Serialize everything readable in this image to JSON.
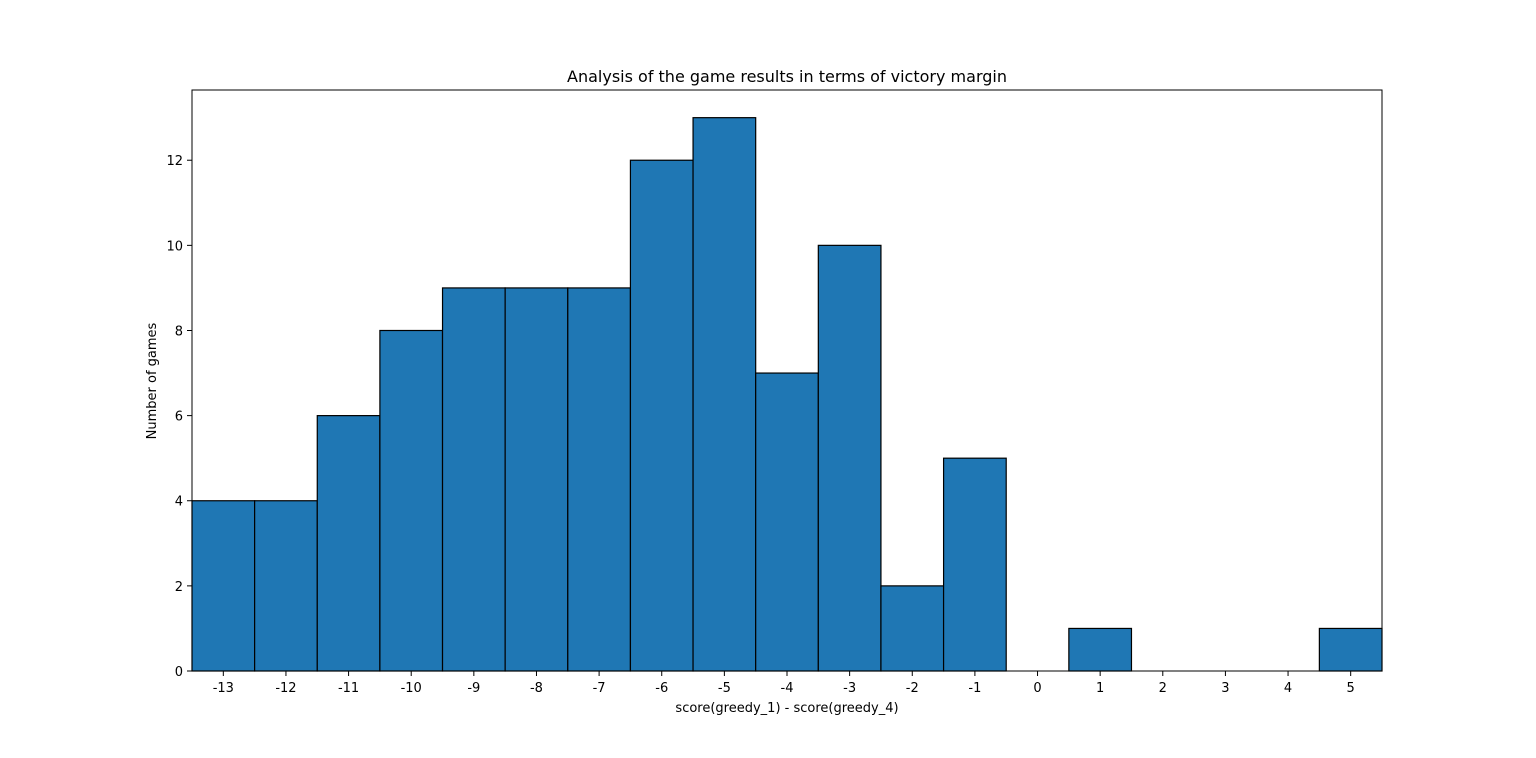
{
  "chart_data": {
    "type": "bar",
    "title": "Analysis of the game results in terms of victory margin",
    "xlabel": "score(greedy_1) - score(greedy_4)",
    "ylabel": "Number of games",
    "categories": [
      "-13",
      "-12",
      "-11",
      "-10",
      "-9",
      "-8",
      "-7",
      "-6",
      "-5",
      "-4",
      "-3",
      "-2",
      "-1",
      "0",
      "1",
      "2",
      "3",
      "4",
      "5"
    ],
    "x": [
      -13,
      -12,
      -11,
      -10,
      -9,
      -8,
      -7,
      -6,
      -5,
      -4,
      -3,
      -2,
      -1,
      0,
      1,
      2,
      3,
      4,
      5
    ],
    "values": [
      4,
      4,
      6,
      8,
      9,
      9,
      9,
      12,
      13,
      7,
      10,
      2,
      5,
      0,
      1,
      0,
      0,
      0,
      1
    ],
    "xlim": [
      -13.5,
      5.5
    ],
    "ylim": [
      0,
      13.65
    ],
    "yticks": [
      0,
      2,
      4,
      6,
      8,
      10,
      12
    ],
    "grid": false,
    "colors": {
      "bar_fill": "#1f77b4",
      "bar_edge": "#000000"
    }
  }
}
